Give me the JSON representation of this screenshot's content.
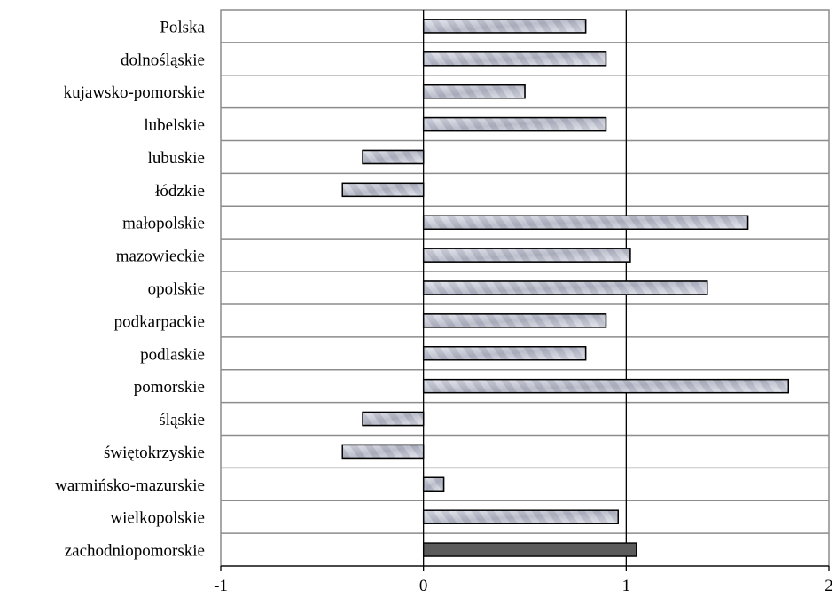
{
  "chart_data": {
    "type": "bar",
    "orientation": "horizontal",
    "title": "",
    "xlabel": "",
    "ylabel": "",
    "categories": [
      "Polska",
      "dolnośląskie",
      "kujawsko-pomorskie",
      "lubelskie",
      "lubuskie",
      "łódzkie",
      "małopolskie",
      "mazowieckie",
      "opolskie",
      "podkarpackie",
      "podlaskie",
      "pomorskie",
      "śląskie",
      "świętokrzyskie",
      "warmińsko-mazurskie",
      "wielkopolskie",
      "zachodniopomorskie"
    ],
    "values": [
      0.8,
      0.9,
      0.5,
      0.9,
      -0.3,
      -0.4,
      1.6,
      1.02,
      1.4,
      0.9,
      0.8,
      1.8,
      -0.3,
      -0.4,
      0.1,
      0.96,
      1.05
    ],
    "highlight_category": "zachodniopomorskie",
    "xlim": [
      -1,
      2
    ],
    "xticks": [
      "-1",
      "0",
      "1",
      "2"
    ],
    "grid": "horizontal",
    "legend": "none",
    "colors": {
      "bar_light": "#e4e6ee",
      "bar_mid": "#a7aab9",
      "bar_highlight": "#5b5b5b",
      "bar_outline": "#000000",
      "grid": "#8c8c8c",
      "axis": "#000000"
    }
  }
}
